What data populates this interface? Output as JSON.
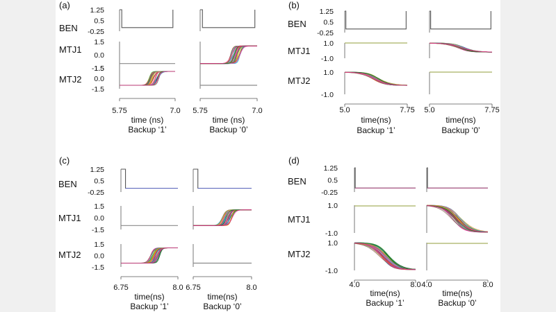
{
  "chart_data": [
    {
      "type": "line",
      "panel_label": "(a)",
      "rows": [
        {
          "label": "BEN",
          "ticks": [
            "1.25",
            "0.5",
            "-0.25"
          ],
          "ylim": [
            -0.25,
            1.25
          ]
        },
        {
          "label": "MTJ1",
          "ticks": [
            "1.5",
            "0.0",
            "-1.5"
          ],
          "ylim": [
            -1.5,
            1.5
          ]
        },
        {
          "label": "MTJ2",
          "ticks": [
            "1.5",
            "0.0",
            "-1.5"
          ],
          "ylim": [
            -1.5,
            1.5
          ]
        }
      ],
      "columns": [
        {
          "xlim": [
            5.75,
            7.0
          ],
          "xticks": [
            "5.75",
            "7.0"
          ],
          "xlabel": "time (ns)",
          "caption": "Backup ‘1’",
          "BEN": {
            "high": 1.25,
            "low": 0.0,
            "edges": [
              5.8,
              6.95
            ]
          },
          "MTJ1": {
            "start": -1.0,
            "end": -1.0,
            "switch": [
              6.3,
              6.8
            ]
          },
          "MTJ2": {
            "start": -1.0,
            "end": 1.0,
            "switch": [
              6.3,
              6.75
            ],
            "spread": 0.18
          }
        },
        {
          "xlim": [
            5.75,
            7.0
          ],
          "xticks": [
            "5.75",
            "7.0"
          ],
          "xlabel": "time (ns)",
          "caption": "Backup ‘0’",
          "BEN": {
            "high": 1.25,
            "low": 0.0,
            "edges": [
              5.8,
              6.95
            ]
          },
          "MTJ1": {
            "start": -1.0,
            "end": 1.0,
            "switch": [
              6.3,
              6.75
            ],
            "spread": 0.18
          },
          "MTJ2": {
            "start": -1.0,
            "end": -1.0,
            "switch": [
              6.3,
              6.8
            ]
          }
        }
      ]
    },
    {
      "type": "line",
      "panel_label": "(b)",
      "rows": [
        {
          "label": "BEN",
          "ticks": [
            "1.25",
            "0.5",
            "-0.25"
          ],
          "ylim": [
            -0.25,
            1.25
          ]
        },
        {
          "label": "MTJ1",
          "ticks": [
            "1.0",
            "-1.0"
          ],
          "ylim": [
            -1.0,
            1.0
          ]
        },
        {
          "label": "MTJ2",
          "ticks": [
            "1.0",
            "-1.0"
          ],
          "ylim": [
            -1.0,
            1.0
          ]
        }
      ],
      "columns": [
        {
          "xlim": [
            5.0,
            7.75
          ],
          "xticks": [
            "5.0",
            "7.75"
          ],
          "xlabel": "time(ns)",
          "caption": "Backup ‘1’",
          "BEN": {
            "high": 1.25,
            "low": 0.0,
            "edges": [
              5.05,
              7.7
            ]
          },
          "MTJ1": {
            "start": 1.0,
            "end": 1.0,
            "switch": [
              5.5,
              7.5
            ]
          },
          "MTJ2": {
            "start": 1.0,
            "end": -0.2,
            "switch": [
              5.0,
              7.75
            ],
            "spread": 0.12
          }
        },
        {
          "xlim": [
            5.0,
            7.75
          ],
          "xticks": [
            "5.0",
            "7.75"
          ],
          "xlabel": "time(ns)",
          "caption": "Backup ‘0’",
          "BEN": {
            "high": 1.25,
            "low": 0.0,
            "edges": [
              5.05,
              7.7
            ]
          },
          "MTJ1": {
            "start": 1.0,
            "end": -0.2,
            "switch": [
              5.0,
              7.75
            ],
            "spread": 0.12
          },
          "MTJ2": {
            "start": 1.0,
            "end": 1.0,
            "switch": [
              5.5,
              7.5
            ]
          }
        }
      ]
    },
    {
      "type": "line",
      "panel_label": "(c)",
      "rows": [
        {
          "label": "BEN",
          "ticks": [
            "1.25",
            "0.5",
            "-0.25"
          ],
          "ylim": [
            -0.25,
            1.25
          ]
        },
        {
          "label": "MTJ1",
          "ticks": [
            "1.5",
            "0.0",
            "-1.5"
          ],
          "ylim": [
            -1.5,
            1.5
          ]
        },
        {
          "label": "MTJ2",
          "ticks": [
            "1.5",
            "0.0",
            "-1.5"
          ],
          "ylim": [
            -1.5,
            1.5
          ]
        }
      ],
      "columns": [
        {
          "xlim": [
            6.75,
            8.0
          ],
          "xticks": [
            "6.75",
            "8.0"
          ],
          "xlabel": "time(ns)",
          "caption": "Backup ‘1’",
          "BEN": {
            "high": 1.25,
            "low": 0.0,
            "edges": [
              6.85
            ]
          },
          "MTJ1": {
            "start": -1.0,
            "end": -1.0,
            "switch": [
              7.2,
              7.8
            ]
          },
          "MTJ2": {
            "start": -1.0,
            "end": 1.0,
            "switch": [
              7.25,
              7.75
            ],
            "spread": 0.18
          }
        },
        {
          "xlim": [
            6.75,
            8.0
          ],
          "xticks": [
            "6.75",
            "8.0"
          ],
          "xlabel": "time(ns)",
          "caption": "Backup ‘0’",
          "BEN": {
            "high": 1.25,
            "low": 0.0,
            "edges": [
              6.85
            ]
          },
          "MTJ1": {
            "start": -1.0,
            "end": 1.0,
            "switch": [
              7.2,
              7.75
            ],
            "spread": 0.18
          },
          "MTJ2": {
            "start": -1.0,
            "end": -1.0,
            "switch": [
              7.2,
              7.8
            ]
          }
        }
      ]
    },
    {
      "type": "line",
      "panel_label": "(d)",
      "rows": [
        {
          "label": "BEN",
          "ticks": [
            "1.25",
            "0.5",
            "-0.25"
          ],
          "ylim": [
            -0.25,
            1.25
          ]
        },
        {
          "label": "MTJ1",
          "ticks": [
            "1.0",
            "-1.0"
          ],
          "ylim": [
            -1.0,
            1.0
          ]
        },
        {
          "label": "MTJ2",
          "ticks": [
            "1.0",
            "-1.0"
          ],
          "ylim": [
            -1.0,
            1.0
          ]
        }
      ],
      "columns": [
        {
          "xlim": [
            4.0,
            8.0
          ],
          "xticks": [
            "4.0",
            "8.0"
          ],
          "xlabel": "time(ns)",
          "caption": "Backup ‘1’",
          "BEN": {
            "high": 1.25,
            "low": 0.0,
            "edges": [
              4.05
            ]
          },
          "MTJ1": {
            "start": 0.95,
            "end": 0.95,
            "switch": [
              5.0,
              7.0
            ]
          },
          "MTJ2": {
            "start": 1.0,
            "end": -0.95,
            "switch": [
              4.0,
              7.9
            ],
            "spread": 0.16
          }
        },
        {
          "xlim": [
            4.0,
            8.0
          ],
          "xticks": [
            "4.0",
            "8.0"
          ],
          "xlabel": "time(ns)",
          "caption": "Backup ‘0’",
          "BEN": {
            "high": 1.25,
            "low": 0.0,
            "edges": [
              4.05
            ]
          },
          "MTJ1": {
            "start": 1.0,
            "end": -0.95,
            "switch": [
              4.0,
              7.9
            ],
            "spread": 0.16
          },
          "MTJ2": {
            "start": 0.95,
            "end": 0.95,
            "switch": [
              5.0,
              7.0
            ]
          }
        }
      ]
    }
  ],
  "colors": {
    "axis": "#555555",
    "ben_line": "#5560b8",
    "ben_line_d": "#c04a8c",
    "flat_line": "#8a8a8a",
    "flat_line_b": "#a8b060",
    "mc_palette": [
      "#1f77b4",
      "#2ca02c",
      "#d62728",
      "#9467bd",
      "#17becf",
      "#e377c2",
      "#ff7f0e",
      "#8c564b",
      "#bcbd22",
      "#7f7f7f",
      "#0b6623",
      "#ff1493"
    ]
  },
  "mc_runs": 36
}
